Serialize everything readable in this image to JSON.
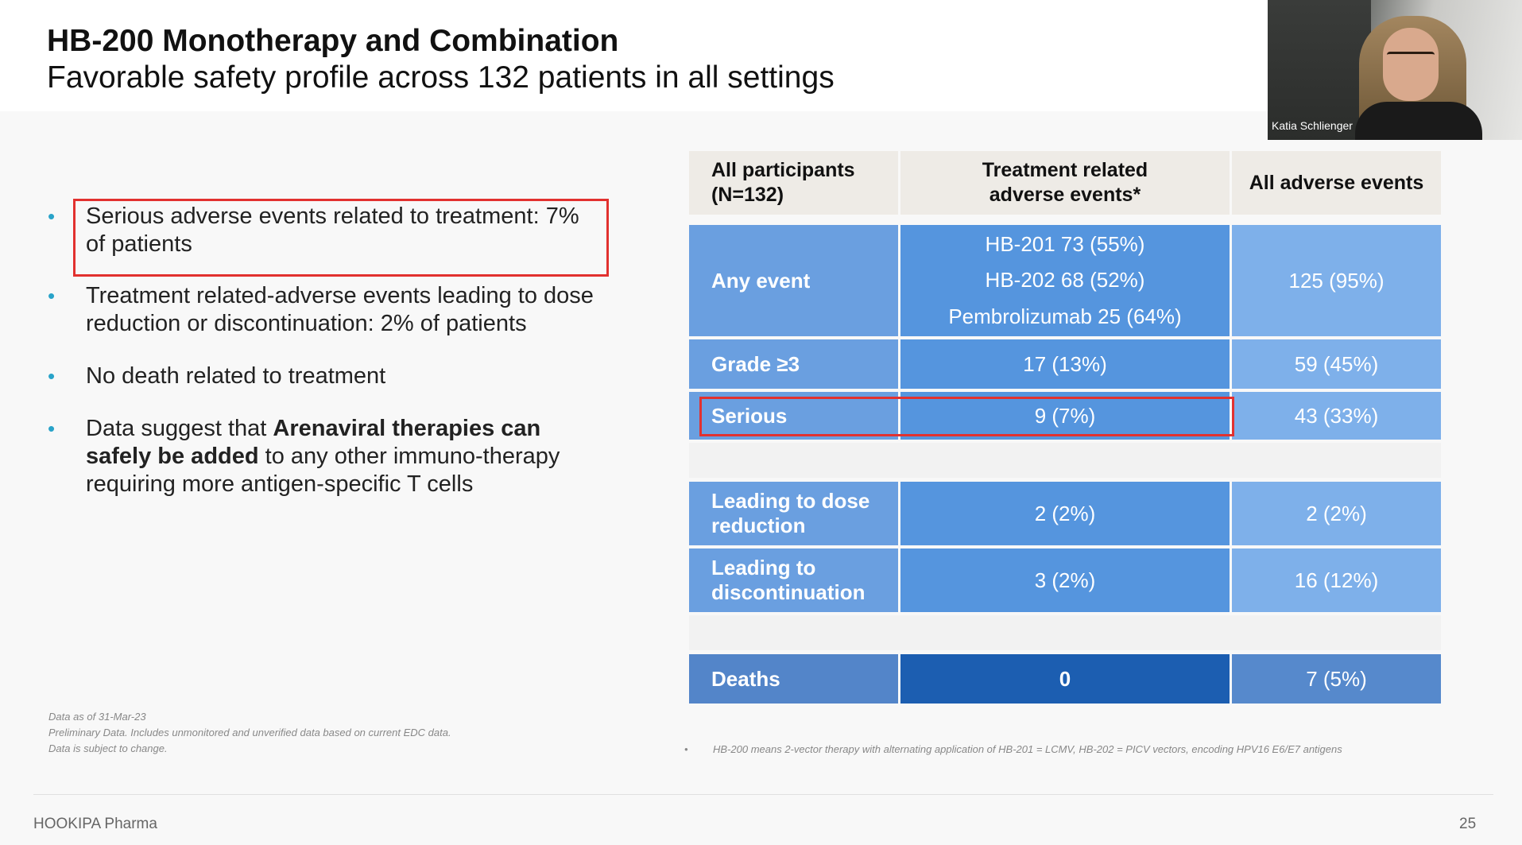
{
  "slide": {
    "title": "HB-200 Monotherapy and Combination",
    "subtitle": "Favorable safety profile across 132 patients in all settings"
  },
  "webcam": {
    "participant_name": "Katia Schlienger"
  },
  "bullets": {
    "b1": "Serious adverse events related to treatment: 7% of patients",
    "b2": "Treatment related-adverse events leading to dose reduction or discontinuation: 2% of patients",
    "b3": "No death related to treatment",
    "b4_pre": "Data suggest that ",
    "b4_bold": "Arenaviral therapies can safely be added",
    "b4_post": " to any other immuno-therapy requiring more antigen-specific T cells"
  },
  "table": {
    "headers": {
      "col1_line1": "All participants",
      "col1_line2": "(N=132)",
      "col2_line1": "Treatment related",
      "col2_line2": "adverse events*",
      "col3": "All adverse events"
    },
    "rows": {
      "any_event": {
        "label": "Any event",
        "trae": [
          "HB-201 73 (55%)",
          "HB-202 68 (52%)",
          "Pembrolizumab 25 (64%)"
        ],
        "all": "125 (95%)"
      },
      "grade3": {
        "label": "Grade ≥3",
        "trae": "17 (13%)",
        "all": "59 (45%)"
      },
      "serious": {
        "label": "Serious",
        "trae": "9 (7%)",
        "all": "43 (33%)"
      },
      "dose_reduction": {
        "label_line1": "Leading to dose",
        "label_line2": "reduction",
        "trae": "2 (2%)",
        "all": "2 (2%)"
      },
      "discontinuation": {
        "label_line1": "Leading to",
        "label_line2": "discontinuation",
        "trae": "3 (2%)",
        "all": "16 (12%)"
      },
      "deaths": {
        "label": "Deaths",
        "trae": "0",
        "all": "7 (5%)"
      }
    }
  },
  "footnotes": {
    "left_line1": "Data as of 31-Mar-23",
    "left_line2": "Preliminary Data. Includes unmonitored and unverified data based on current EDC data.",
    "left_line3": "Data is subject to change.",
    "right_bullet": "•",
    "right_text": "HB-200 means 2-vector therapy with alternating application of  HB-201 = LCMV, HB-202 = PICV vectors, encoding HPV16 E6/E7 antigens"
  },
  "footer": {
    "company": "HOOKIPA Pharma",
    "page_number": "25"
  },
  "colors": {
    "label_col": "#6a9fe0",
    "trae_col": "#5595de",
    "all_col": "#7eb0ea",
    "deaths_label": "#5385c9",
    "deaths_trae": "#1c5eb1",
    "deaths_all": "#5689cc",
    "highlight": "#e2312f",
    "bullet": "#29a3c9"
  }
}
